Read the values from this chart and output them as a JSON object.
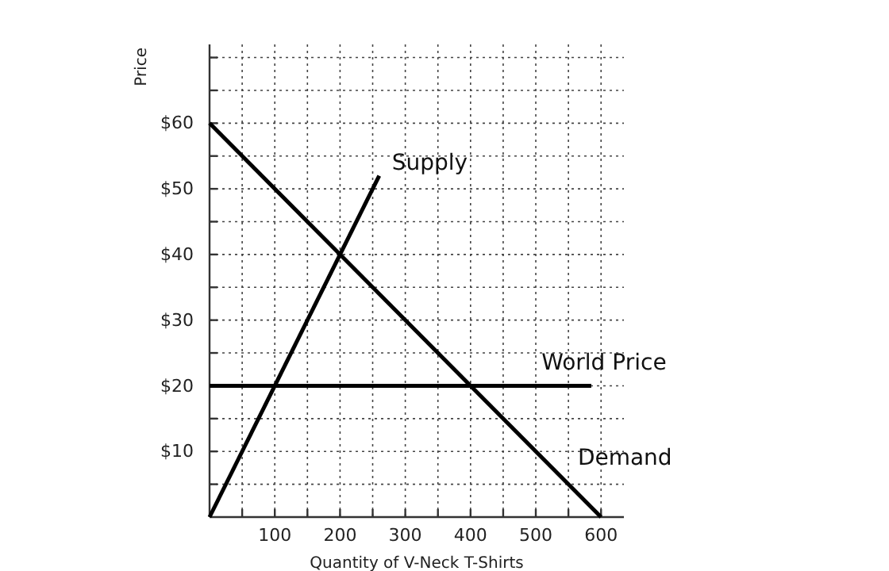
{
  "chart_data": {
    "type": "line",
    "xlabel": "Quantity of V-Neck T-Shirts",
    "ylabel": "Price",
    "xlim": [
      0,
      635
    ],
    "ylim": [
      0,
      72
    ],
    "xticks": [
      {
        "value": 50,
        "label": null
      },
      100,
      {
        "value": 150,
        "label": null
      },
      200,
      {
        "value": 250,
        "label": null
      },
      300,
      {
        "value": 350,
        "label": null
      },
      400,
      {
        "value": 450,
        "label": null
      },
      500,
      {
        "value": 550,
        "label": null
      },
      600
    ],
    "yticks": [
      {
        "value": 5,
        "label": null
      },
      {
        "value": 10,
        "label": "$10"
      },
      {
        "value": 15,
        "label": null
      },
      {
        "value": 20,
        "label": "$20"
      },
      {
        "value": 25,
        "label": null
      },
      {
        "value": 30,
        "label": "$30"
      },
      {
        "value": 35,
        "label": null
      },
      {
        "value": 40,
        "label": "$40"
      },
      {
        "value": 45,
        "label": null
      },
      {
        "value": 50,
        "label": "$50"
      },
      {
        "value": 55,
        "label": null
      },
      {
        "value": 60,
        "label": "$60"
      },
      {
        "value": 65,
        "label": null
      },
      {
        "value": 70,
        "label": null
      }
    ],
    "grid": true,
    "marker": "none",
    "line_style": "solid",
    "series": [
      {
        "name": "Supply",
        "color": "#000000",
        "x": [
          0,
          260
        ],
        "values": [
          0,
          52
        ]
      },
      {
        "name": "Demand",
        "color": "#000000",
        "x": [
          0,
          600
        ],
        "values": [
          60,
          0
        ]
      },
      {
        "name": "World Price",
        "color": "#000000",
        "x": [
          0,
          585
        ],
        "values": [
          20,
          20
        ]
      }
    ]
  }
}
